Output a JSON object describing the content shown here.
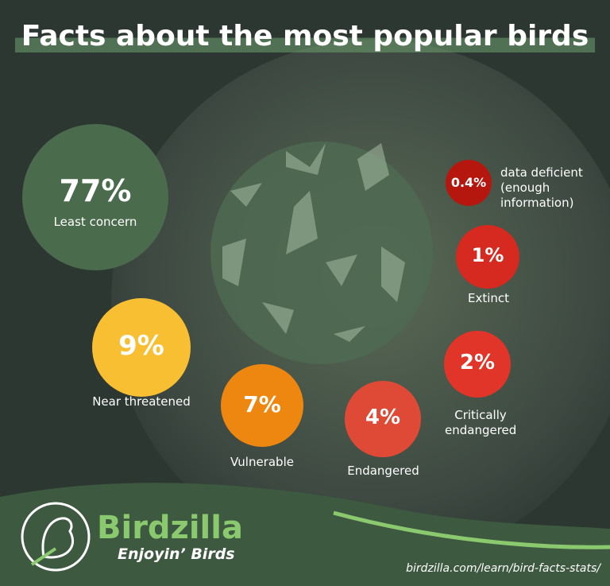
{
  "chart_data": {
    "type": "bubble",
    "title": "Facts about the most popular birds",
    "categories": [
      "Least concern",
      "Near threatened",
      "Vulnerable",
      "Endangered",
      "Critically endangered",
      "Extinct",
      "data deficient (enough information)"
    ],
    "values": [
      77,
      9,
      7,
      4,
      2,
      1,
      0.4
    ],
    "value_labels": [
      "77%",
      "9%",
      "7%",
      "4%",
      "2%",
      "1%",
      "0.4%"
    ],
    "colors": [
      "#4a6b4c",
      "#f8bf33",
      "#ee8710",
      "#df4a36",
      "#e03528",
      "#d6291f",
      "#b5170f"
    ],
    "brand": "Birdzilla",
    "tagline": "Enjoyin’ Birds",
    "url": "birdzilla.com/learn/bird-facts-stats/"
  }
}
